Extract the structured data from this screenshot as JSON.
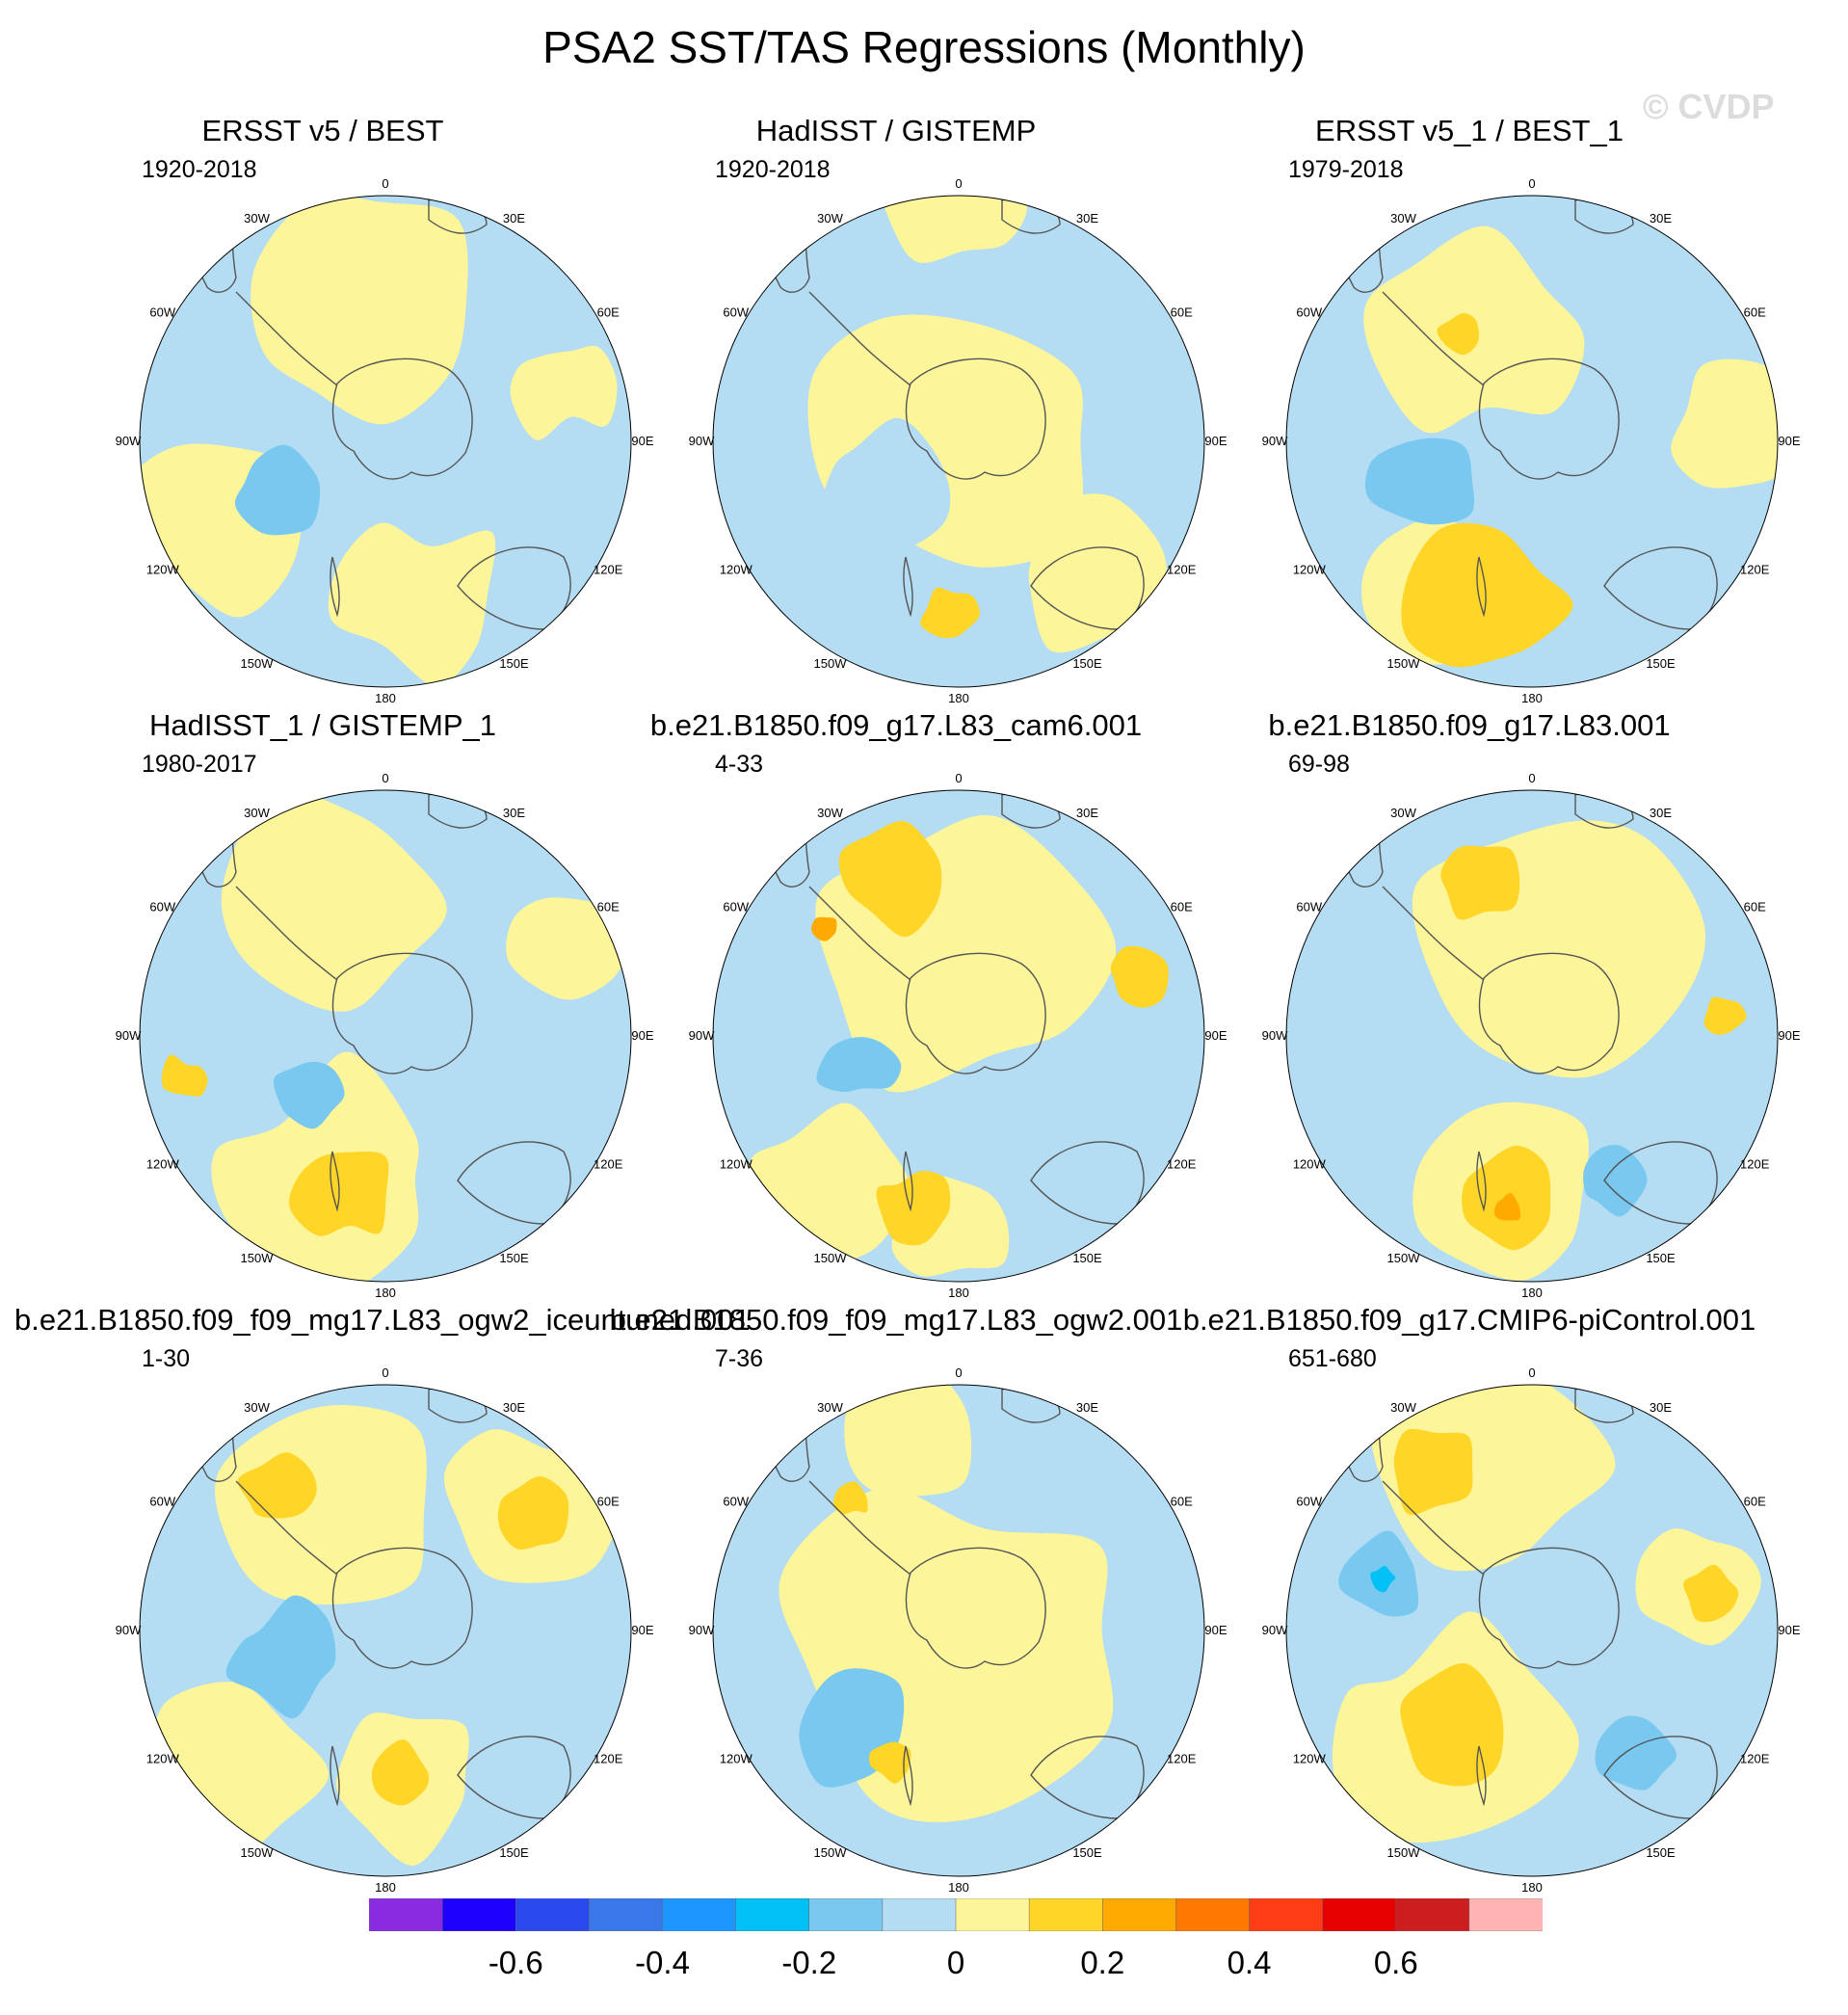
{
  "figure": {
    "title": "PSA2 SST/TAS Regressions (Monthly)",
    "watermark": "© CVDP"
  },
  "chart_data": {
    "type": "heatmap",
    "projection": "south-polar-stereographic",
    "longitude_labels": [
      "0",
      "30E",
      "60E",
      "90E",
      "120E",
      "150E",
      "180",
      "150W",
      "120W",
      "90W",
      "60W",
      "30W"
    ],
    "panels": [
      {
        "title": "ERSST v5 / BEST",
        "period": "1920-2018"
      },
      {
        "title": "HadISST / GISTEMP",
        "period": "1920-2018"
      },
      {
        "title": "ERSST v5_1 / BEST_1",
        "period": "1979-2018"
      },
      {
        "title": "HadISST_1 / GISTEMP_1",
        "period": "1980-2017"
      },
      {
        "title": "b.e21.B1850.f09_g17.L83_cam6.001",
        "period": "4-33"
      },
      {
        "title": "b.e21.B1850.f09_g17.L83.001",
        "period": "69-98"
      },
      {
        "title": "b.e21.B1850.f09_f09_mg17.L83_ogw2_iceuntuned.001",
        "period": "1-30"
      },
      {
        "title": "b.e21.B1850.f09_f09_mg17.L83_ogw2.001",
        "period": "7-36"
      },
      {
        "title": "b.e21.B1850.f09_g17.CMIP6-piControl.001",
        "period": "651-680"
      }
    ],
    "colorbar": {
      "colors": [
        "#8a2be2",
        "#1e00ff",
        "#2a4af0",
        "#3a78ea",
        "#1e96ff",
        "#00c0f5",
        "#78c8f0",
        "#b4dcf2",
        "#fdf59a",
        "#ffd527",
        "#ffaa00",
        "#ff7800",
        "#ff3c14",
        "#e60000",
        "#cc1e1e",
        "#ffb4b4"
      ],
      "tick_labels": [
        "-0.6",
        "-0.4",
        "-0.2",
        "0",
        "0.2",
        "0.4",
        "0.6"
      ]
    }
  }
}
